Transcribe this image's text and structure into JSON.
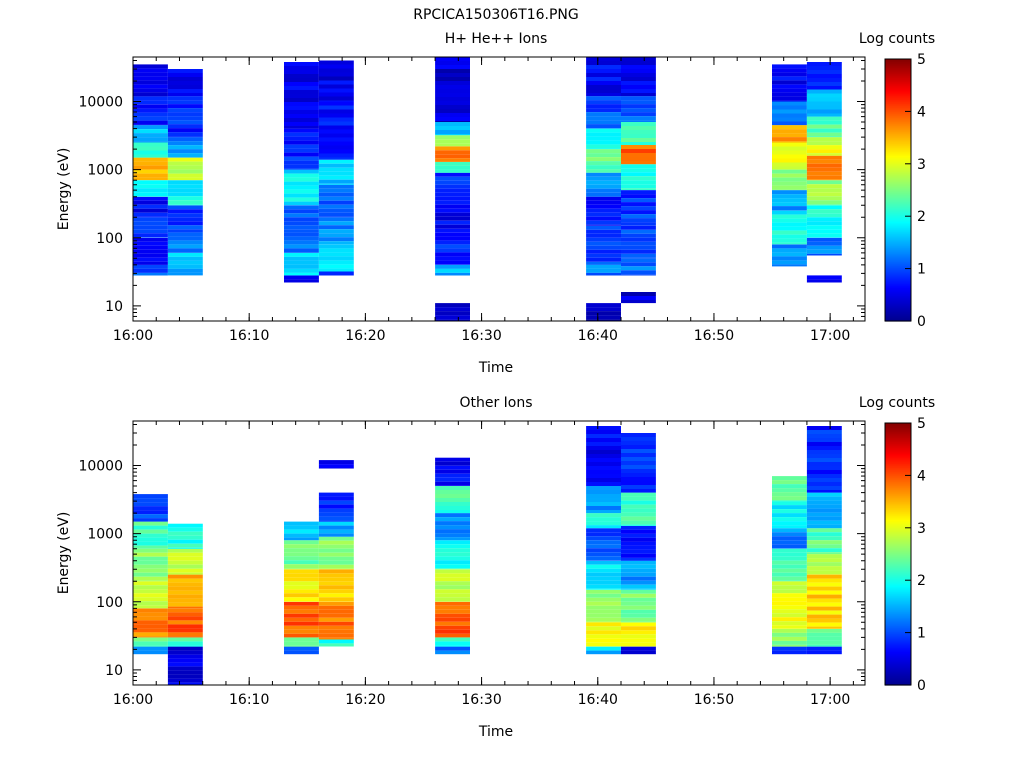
{
  "figure": {
    "title": "RPCICA150306T16.PNG"
  },
  "colormap": [
    "#00008f",
    "#0000ff",
    "#0080ff",
    "#00ffff",
    "#80ff80",
    "#ffff00",
    "#ff8000",
    "#ff0000",
    "#800000"
  ],
  "chart_data": [
    {
      "type": "heatmap",
      "title": "H+ He++ Ions",
      "xlabel": "Time",
      "ylabel": "Energy (eV)",
      "x_ticks": [
        "16:00",
        "16:10",
        "16:20",
        "16:30",
        "16:40",
        "16:50",
        "17:00"
      ],
      "y_ticks": [
        "10",
        "100",
        "1000",
        "10000"
      ],
      "xlim_minutes_after_1600": [
        0,
        63
      ],
      "ylim_eV": [
        6,
        45000
      ],
      "y_scale": "log",
      "colorbar": {
        "label": "Log counts",
        "ticks": [
          "0",
          "1",
          "2",
          "3",
          "4",
          "5"
        ],
        "range": [
          0,
          5
        ]
      },
      "time_bins": [
        {
          "start": "16:00",
          "end": "16:03",
          "profile": [
            [
              28,
              40,
              1.1
            ],
            [
              40,
              100,
              0.7
            ],
            [
              100,
              200,
              0.9
            ],
            [
              200,
              400,
              0.6
            ],
            [
              400,
              700,
              2.0
            ],
            [
              700,
              1500,
              3.4
            ],
            [
              1500,
              2500,
              2.2
            ],
            [
              2500,
              4500,
              1.6
            ],
            [
              4500,
              9000,
              0.8
            ],
            [
              9000,
              35000,
              0.6
            ]
          ]
        },
        {
          "start": "16:03",
          "end": "16:06",
          "profile": [
            [
              28,
              60,
              1.6
            ],
            [
              60,
              120,
              1.3
            ],
            [
              120,
              300,
              0.9
            ],
            [
              300,
              700,
              1.9
            ],
            [
              700,
              1500,
              2.8
            ],
            [
              1500,
              3000,
              1.3
            ],
            [
              3000,
              12000,
              0.8
            ],
            [
              12000,
              30000,
              0.6
            ]
          ]
        },
        {
          "start": "16:13",
          "end": "16:16",
          "profile": [
            [
              22,
              28,
              0.6
            ],
            [
              28,
              60,
              1.7
            ],
            [
              60,
              120,
              1.2
            ],
            [
              120,
              300,
              1.0
            ],
            [
              300,
              1000,
              1.8
            ],
            [
              1000,
              4000,
              0.8
            ],
            [
              4000,
              38000,
              0.5
            ]
          ]
        },
        {
          "start": "16:16",
          "end": "16:19",
          "profile": [
            [
              28,
              32,
              0.6
            ],
            [
              32,
              80,
              1.8
            ],
            [
              80,
              200,
              1.3
            ],
            [
              200,
              600,
              1.0
            ],
            [
              600,
              1400,
              1.6
            ],
            [
              1400,
              10000,
              0.7
            ],
            [
              10000,
              40000,
              0.5
            ]
          ]
        },
        {
          "start": "16:26",
          "end": "16:29",
          "profile": [
            [
              6,
              11,
              0.4
            ],
            [
              28,
              40,
              1.5
            ],
            [
              40,
              120,
              0.8
            ],
            [
              120,
              400,
              0.6
            ],
            [
              400,
              900,
              0.9
            ],
            [
              900,
              1300,
              2.2
            ],
            [
              1300,
              2200,
              3.8
            ],
            [
              2200,
              3200,
              2.6
            ],
            [
              3200,
              5000,
              1.6
            ],
            [
              5000,
              45000,
              0.4
            ]
          ]
        },
        {
          "start": "16:39",
          "end": "16:42",
          "profile": [
            [
              6,
              11,
              0.4
            ],
            [
              28,
              40,
              1.2
            ],
            [
              40,
              150,
              1.0
            ],
            [
              150,
              400,
              0.7
            ],
            [
              400,
              900,
              1.3
            ],
            [
              900,
              2000,
              2.4
            ],
            [
              2000,
              4000,
              1.8
            ],
            [
              4000,
              12000,
              1.0
            ],
            [
              12000,
              45000,
              0.6
            ]
          ]
        },
        {
          "start": "16:42",
          "end": "16:45",
          "profile": [
            [
              11,
              16,
              0.4
            ],
            [
              28,
              50,
              1.2
            ],
            [
              50,
              150,
              1.0
            ],
            [
              150,
              500,
              0.9
            ],
            [
              500,
              1200,
              2.0
            ],
            [
              1200,
              2300,
              3.9
            ],
            [
              2300,
              5000,
              2.2
            ],
            [
              5000,
              12000,
              1.0
            ],
            [
              12000,
              45000,
              0.6
            ]
          ]
        },
        {
          "start": "16:55",
          "end": "16:58",
          "profile": [
            [
              38,
              80,
              1.3
            ],
            [
              80,
              250,
              1.9
            ],
            [
              250,
              500,
              1.4
            ],
            [
              500,
              1000,
              2.6
            ],
            [
              1000,
              2500,
              3.0
            ],
            [
              2500,
              4500,
              3.6
            ],
            [
              4500,
              10000,
              1.3
            ],
            [
              10000,
              35000,
              0.6
            ]
          ]
        },
        {
          "start": "16:58",
          "end": "17:01",
          "profile": [
            [
              22,
              28,
              0.4
            ],
            [
              55,
              100,
              1.2
            ],
            [
              100,
              300,
              2.0
            ],
            [
              300,
              700,
              2.6
            ],
            [
              700,
              1600,
              3.7
            ],
            [
              1600,
              3000,
              3.0
            ],
            [
              3000,
              6000,
              2.3
            ],
            [
              6000,
              15000,
              1.5
            ],
            [
              15000,
              38000,
              0.8
            ]
          ]
        }
      ]
    },
    {
      "type": "heatmap",
      "title": "Other Ions",
      "xlabel": "Time",
      "ylabel": "Energy (eV)",
      "x_ticks": [
        "16:00",
        "16:10",
        "16:20",
        "16:30",
        "16:40",
        "16:50",
        "17:00"
      ],
      "y_ticks": [
        "10",
        "100",
        "1000",
        "10000"
      ],
      "xlim_minutes_after_1600": [
        0,
        63
      ],
      "ylim_eV": [
        6,
        45000
      ],
      "y_scale": "log",
      "colorbar": {
        "label": "Log counts",
        "ticks": [
          "0",
          "1",
          "2",
          "3",
          "4",
          "5"
        ],
        "range": [
          0,
          5
        ]
      },
      "time_bins": [
        {
          "start": "16:00",
          "end": "16:03",
          "profile": [
            [
              17,
              22,
              1.2
            ],
            [
              22,
              30,
              2.4
            ],
            [
              30,
              80,
              3.7
            ],
            [
              80,
              200,
              3.0
            ],
            [
              200,
              600,
              2.6
            ],
            [
              600,
              1500,
              2.2
            ],
            [
              1500,
              3800,
              1.0
            ]
          ]
        },
        {
          "start": "16:03",
          "end": "16:06",
          "profile": [
            [
              6,
              22,
              0.5
            ],
            [
              22,
              30,
              2.2
            ],
            [
              30,
              80,
              3.9
            ],
            [
              80,
              250,
              3.6
            ],
            [
              250,
              600,
              2.8
            ],
            [
              600,
              1400,
              2.0
            ]
          ]
        },
        {
          "start": "16:13",
          "end": "16:16",
          "profile": [
            [
              17,
              22,
              1.2
            ],
            [
              22,
              30,
              2.6
            ],
            [
              30,
              100,
              3.9
            ],
            [
              100,
              300,
              3.2
            ],
            [
              300,
              800,
              2.4
            ],
            [
              800,
              1500,
              1.6
            ]
          ]
        },
        {
          "start": "16:16",
          "end": "16:19",
          "profile": [
            [
              22,
              28,
              2.0
            ],
            [
              28,
              100,
              3.8
            ],
            [
              100,
              300,
              3.3
            ],
            [
              300,
              900,
              2.6
            ],
            [
              900,
              1500,
              1.5
            ],
            [
              1500,
              4000,
              0.9
            ],
            [
              9000,
              12000,
              0.5
            ]
          ]
        },
        {
          "start": "16:26",
          "end": "16:29",
          "profile": [
            [
              17,
              22,
              1.1
            ],
            [
              22,
              30,
              2.1
            ],
            [
              30,
              100,
              3.9
            ],
            [
              100,
              300,
              2.8
            ],
            [
              300,
              800,
              2.0
            ],
            [
              800,
              2000,
              1.4
            ],
            [
              2000,
              5000,
              2.2
            ],
            [
              5000,
              13000,
              0.6
            ]
          ]
        },
        {
          "start": "16:39",
          "end": "16:42",
          "profile": [
            [
              17,
              22,
              1.6
            ],
            [
              22,
              50,
              3.0
            ],
            [
              50,
              150,
              2.6
            ],
            [
              150,
              400,
              1.8
            ],
            [
              400,
              1200,
              1.0
            ],
            [
              1200,
              2000,
              2.0
            ],
            [
              2000,
              5000,
              1.4
            ],
            [
              5000,
              38000,
              0.6
            ]
          ]
        },
        {
          "start": "16:42",
          "end": "16:45",
          "profile": [
            [
              17,
              22,
              0.5
            ],
            [
              22,
              50,
              3.2
            ],
            [
              50,
              150,
              2.4
            ],
            [
              150,
              400,
              1.4
            ],
            [
              400,
              1300,
              0.8
            ],
            [
              1300,
              4000,
              2.2
            ],
            [
              4000,
              30000,
              0.8
            ]
          ]
        },
        {
          "start": "16:55",
          "end": "16:58",
          "profile": [
            [
              17,
              22,
              0.9
            ],
            [
              22,
              40,
              2.5
            ],
            [
              40,
              200,
              3.0
            ],
            [
              200,
              600,
              2.2
            ],
            [
              600,
              1200,
              1.3
            ],
            [
              1200,
              3000,
              1.8
            ],
            [
              3000,
              7000,
              2.4
            ]
          ]
        },
        {
          "start": "16:58",
          "end": "17:01",
          "profile": [
            [
              17,
              22,
              0.9
            ],
            [
              22,
              40,
              2.4
            ],
            [
              40,
              250,
              3.3
            ],
            [
              250,
              500,
              2.7
            ],
            [
              500,
              1200,
              2.3
            ],
            [
              1200,
              4000,
              1.5
            ],
            [
              4000,
              38000,
              0.8
            ]
          ]
        }
      ]
    }
  ]
}
